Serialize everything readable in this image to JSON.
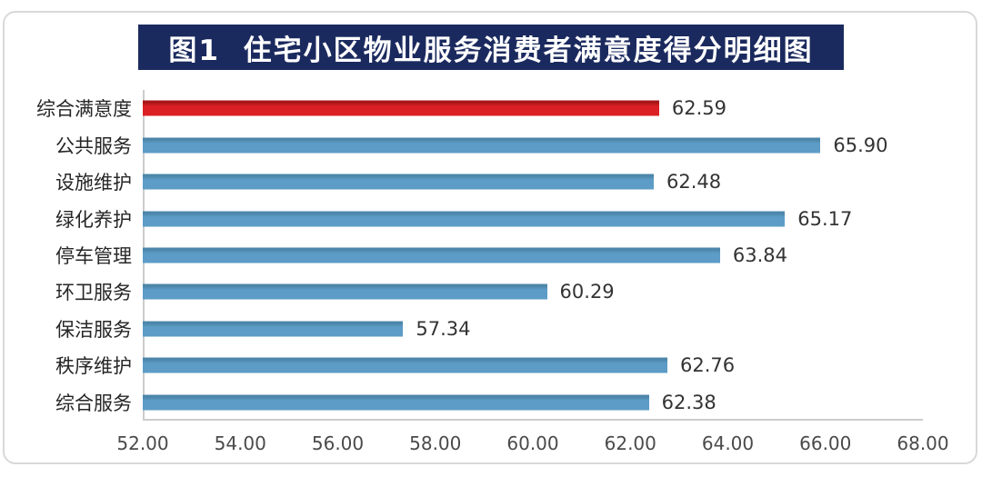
{
  "page": {
    "background_color": "#ffffff",
    "card_border_color": "#d9d9d9"
  },
  "title": {
    "text": "图1  住宅小区物业服务消费者满意度得分明细图",
    "bg_color": "#1b2a5e",
    "text_color": "#ffffff"
  },
  "chart_data": {
    "type": "bar",
    "orientation": "horizontal",
    "title": "图1  住宅小区物业服务消费者满意度得分明细图",
    "categories": [
      "综合满意度",
      "公共服务",
      "设施维护",
      "绿化养护",
      "停车管理",
      "环卫服务",
      "保洁服务",
      "秩序维护",
      "综合服务"
    ],
    "values": [
      62.59,
      65.9,
      62.48,
      65.17,
      63.84,
      60.29,
      57.34,
      62.76,
      62.38
    ],
    "value_labels": [
      "62.59",
      "65.90",
      "62.48",
      "65.17",
      "63.84",
      "60.29",
      "57.34",
      "62.76",
      "62.38"
    ],
    "highlight_index": 0,
    "highlight_color": "#da2025",
    "highlight_edge_color": "#a81518",
    "default_color": "#5d9cc6",
    "default_edge_color": "#4c86aa",
    "xlim": [
      52,
      68
    ],
    "x_ticks": [
      "52.00",
      "54.00",
      "56.00",
      "58.00",
      "60.00",
      "62.00",
      "64.00",
      "66.00",
      "68.00"
    ],
    "grid": false,
    "legend": "none",
    "axis_line_color": "#cccccc"
  }
}
